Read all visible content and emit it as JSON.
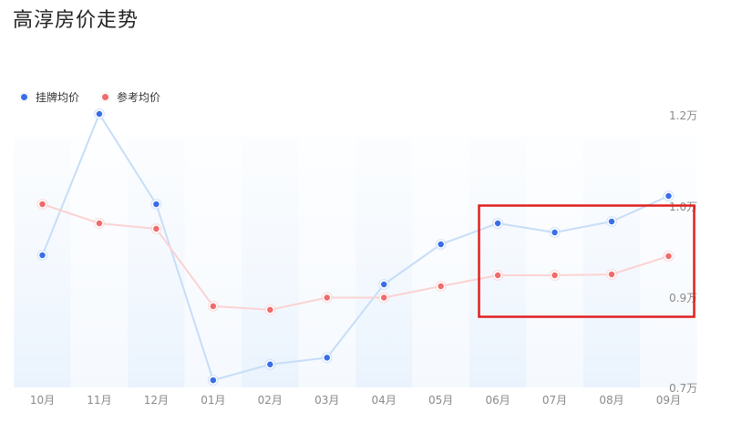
{
  "title": "高淳房价走势",
  "legend": [
    {
      "name": "挂牌均价",
      "color": "#3a6ee8"
    },
    {
      "name": "参考均价",
      "color": "#f06b6b"
    }
  ],
  "chart_data": {
    "type": "line",
    "title": "高淳房价走势",
    "categories": [
      "10月",
      "11月",
      "12月",
      "01月",
      "02月",
      "03月",
      "04月",
      "05月",
      "06月",
      "07月",
      "08月",
      "09月"
    ],
    "y_ticks": [
      "0.7万",
      "0.9万",
      "1.0万",
      "1.2万"
    ],
    "y_tick_values": [
      0.7,
      0.9,
      1.0,
      1.2
    ],
    "ylim": [
      0.7,
      1.2
    ],
    "series": [
      {
        "name": "挂牌均价",
        "color": "#3a6ee8",
        "line_color": "#c7ddf7",
        "values": [
          0.946,
          1.202,
          1.004,
          0.716,
          0.751,
          0.766,
          0.914,
          0.958,
          0.981,
          0.971,
          0.983,
          1.022
        ]
      },
      {
        "name": "参考均价",
        "color": "#f06b6b",
        "line_color": "#fbd3d3",
        "values": [
          1.004,
          0.981,
          0.975,
          0.88,
          0.872,
          0.899,
          0.899,
          0.912,
          0.924,
          0.924,
          0.925,
          0.945
        ]
      }
    ],
    "highlight_box_color": "#e02020"
  }
}
